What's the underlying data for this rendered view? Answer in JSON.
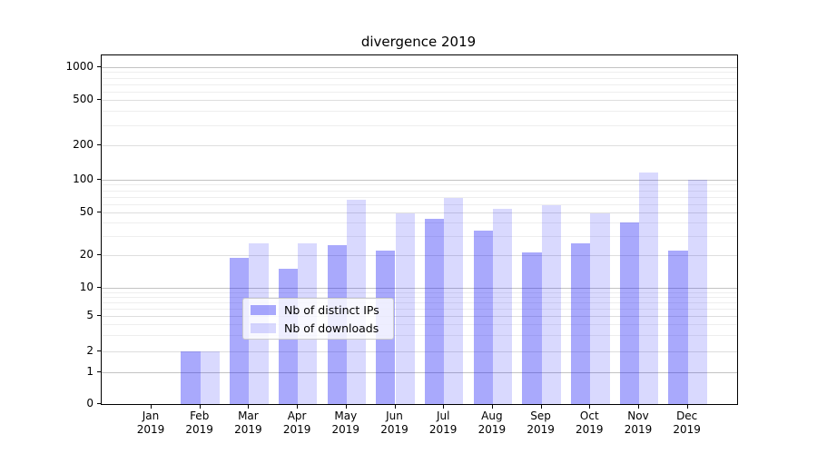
{
  "title": "divergence 2019",
  "chart_data": {
    "type": "bar",
    "title": "divergence 2019",
    "categories": [
      "Jan 2019",
      "Feb 2019",
      "Mar 2019",
      "Apr 2019",
      "May 2019",
      "Jun 2019",
      "Jul 2019",
      "Aug 2019",
      "Sep 2019",
      "Oct 2019",
      "Nov 2019",
      "Dec 2019"
    ],
    "x_tick_month": [
      "Jan",
      "Feb",
      "Mar",
      "Apr",
      "May",
      "Jun",
      "Jul",
      "Aug",
      "Sep",
      "Oct",
      "Nov",
      "Dec"
    ],
    "x_tick_year": "2019",
    "series": [
      {
        "name": "Nb of distinct IPs",
        "fill": "rgba(18,18,246,0.36)",
        "swatch_hex": "#abaaf9",
        "values": [
          0,
          2,
          19,
          15,
          25,
          22,
          44,
          34,
          21,
          26,
          40,
          22
        ]
      },
      {
        "name": "Nb of downloads",
        "fill": "rgba(18,18,246,0.16)",
        "swatch_hex": "#d9d9fc",
        "values": [
          0,
          2,
          26,
          26,
          65,
          49,
          68,
          54,
          58,
          49,
          115,
          100
        ]
      }
    ],
    "yscale": "symlog",
    "yticks": [
      0,
      1,
      2,
      5,
      10,
      20,
      50,
      100,
      200,
      500,
      1000
    ],
    "ylim": [
      0,
      1500
    ],
    "grid": true,
    "legend_position": "lower center"
  }
}
